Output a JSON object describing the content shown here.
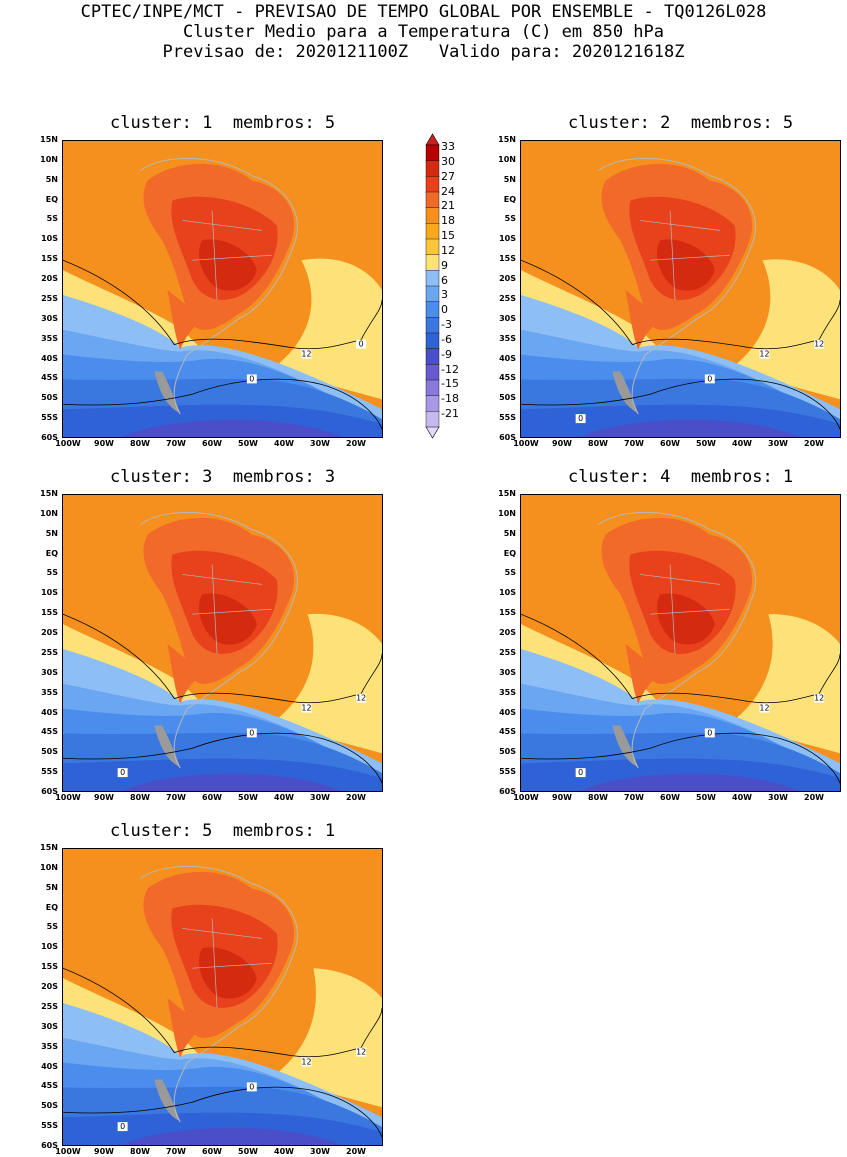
{
  "header": {
    "line1": "CPTEC/INPE/MCT - PREVISAO DE TEMPO GLOBAL POR ENSEMBLE - TQ0126L028",
    "line2": "Cluster Medio para a Temperatura (C) em 850 hPa",
    "line3": "Previsao de: 2020121100Z   Valido para: 2020121618Z"
  },
  "panels": [
    {
      "title": "cluster: 1  membros: 5",
      "contour_labels": [
        "12",
        "0",
        "0"
      ]
    },
    {
      "title": "cluster: 2  membros: 5",
      "contour_labels": [
        "12",
        "12",
        "0",
        "0"
      ]
    },
    {
      "title": "cluster: 3  membros: 3",
      "contour_labels": [
        "12",
        "12",
        "0",
        "0"
      ]
    },
    {
      "title": "cluster: 4  membros: 1",
      "contour_labels": [
        "12",
        "12",
        "0",
        "0"
      ]
    },
    {
      "title": "cluster: 5  membros: 1",
      "contour_labels": [
        "12",
        "12",
        "0",
        "0"
      ]
    }
  ],
  "lat_ticks": [
    "15N",
    "10N",
    "5N",
    "EQ",
    "5S",
    "10S",
    "15S",
    "20S",
    "25S",
    "30S",
    "35S",
    "40S",
    "45S",
    "50S",
    "55S",
    "60S"
  ],
  "lon_ticks": [
    "100W",
    "90W",
    "80W",
    "70W",
    "60W",
    "50W",
    "40W",
    "30W",
    "20W"
  ],
  "colorbar": {
    "labels": [
      "33",
      "30",
      "27",
      "24",
      "21",
      "18",
      "15",
      "12",
      "9",
      "6",
      "3",
      "0",
      "-3",
      "-6",
      "-9",
      "-12",
      "-15",
      "-18",
      "-21"
    ],
    "colors": [
      "#cc2020",
      "#b80000",
      "#d42a10",
      "#e8421c",
      "#f26a2a",
      "#f5901e",
      "#f7a81c",
      "#f9c63c",
      "#fde27a",
      "#8dbef5",
      "#6aa6f2",
      "#4a8ded",
      "#3a78e0",
      "#2f62d6",
      "#4a4ec8",
      "#6a5ad0",
      "#8a78dc",
      "#a898e6",
      "#c8b8f0",
      "#e2d8f8"
    ]
  }
}
